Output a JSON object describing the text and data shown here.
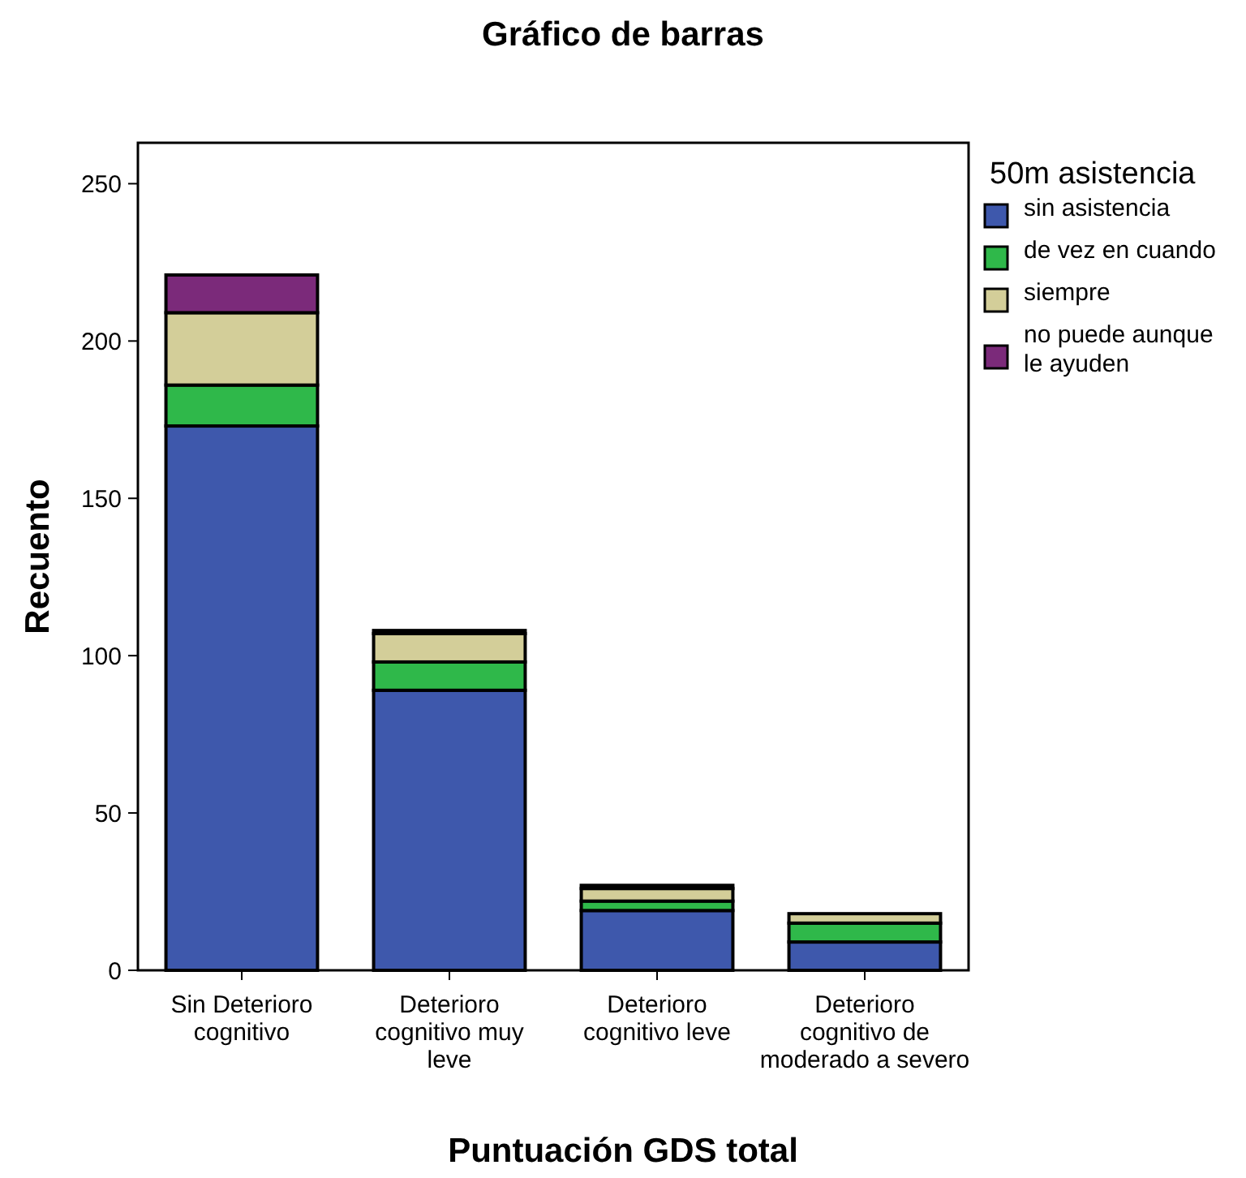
{
  "chart_data": {
    "type": "bar",
    "title": "Gráfico de barras",
    "xlabel": "Puntuación GDS total",
    "ylabel": "Recuento",
    "legend_title": "50m asistencia",
    "categories": [
      "Sin Deterioro cognitivo",
      "Deterioro cognitivo muy leve",
      "Deterioro cognitivo leve",
      "Deterioro cognitivo de moderado a severo"
    ],
    "stacked": true,
    "ylim": [
      0,
      263
    ],
    "yticks": [
      0,
      50,
      100,
      150,
      200,
      250
    ],
    "grid": false,
    "legend": "right",
    "series": [
      {
        "name": "sin asistencia",
        "color": "#3e58ac",
        "values": [
          173,
          89,
          19,
          9
        ]
      },
      {
        "name": "de vez en cuando",
        "color": "#2fb84a",
        "values": [
          13,
          9,
          3,
          6
        ]
      },
      {
        "name": "siempre",
        "color": "#d3ce99",
        "values": [
          23,
          9,
          4,
          3
        ]
      },
      {
        "name": "no puede aunque le ayuden",
        "color": "#7b2a7a",
        "values": [
          12,
          1,
          1,
          0
        ]
      }
    ]
  }
}
